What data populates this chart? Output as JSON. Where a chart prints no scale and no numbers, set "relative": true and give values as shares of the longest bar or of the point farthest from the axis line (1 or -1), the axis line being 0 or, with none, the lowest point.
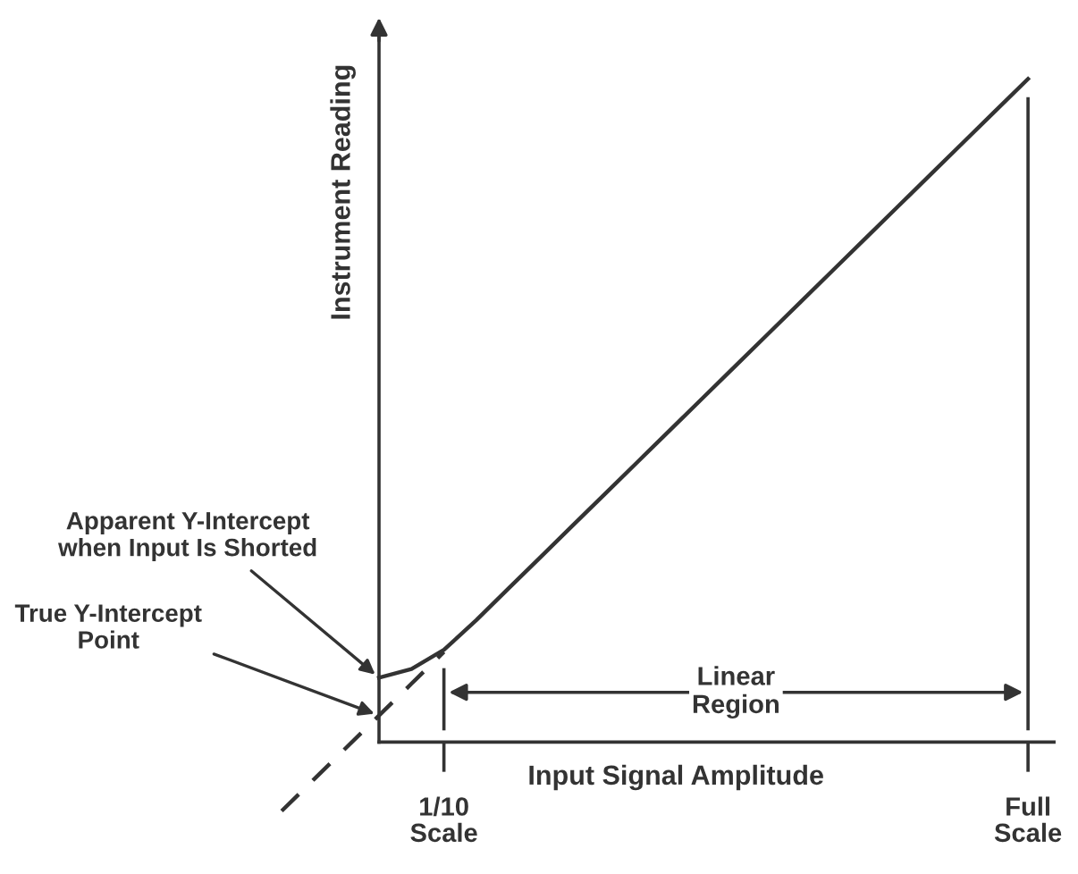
{
  "chart_data": {
    "type": "line",
    "relative": true,
    "xlabel": "Input Signal Amplitude",
    "ylabel": "Instrument Reading",
    "categories": [
      null,
      null,
      null,
      null,
      null,
      "1/10\nScale",
      null,
      null,
      null,
      null,
      null,
      null,
      null,
      null,
      null,
      null,
      null,
      null,
      null,
      null,
      null,
      null,
      null,
      "Full\nScale"
    ],
    "series": [
      {
        "color": "#333333",
        "line_style": "solid",
        "values": [
          null,
          null,
          null,
          0.097,
          0.11,
          0.139,
          0.184,
          0.232,
          0.28,
          0.328,
          0.376,
          0.424,
          0.472,
          0.52,
          0.568,
          0.616,
          0.664,
          0.712,
          0.76,
          0.808,
          0.856,
          0.904,
          0.952,
          1.0
        ]
      },
      {
        "color": "#333333",
        "line_style": "dashed",
        "values": [
          -0.104,
          -0.056,
          -0.008,
          0.04,
          0.088,
          0.136,
          null,
          null,
          null,
          null,
          null,
          null,
          null,
          null,
          null,
          null,
          null,
          null,
          null,
          null,
          null,
          null,
          null,
          null
        ]
      }
    ],
    "annotations": [
      "Apparent Y-Intercept\nwhen Input Is Shorted",
      "True Y-Intercept\nPoint",
      "Linear\nRegion"
    ],
    "marker": "none"
  }
}
